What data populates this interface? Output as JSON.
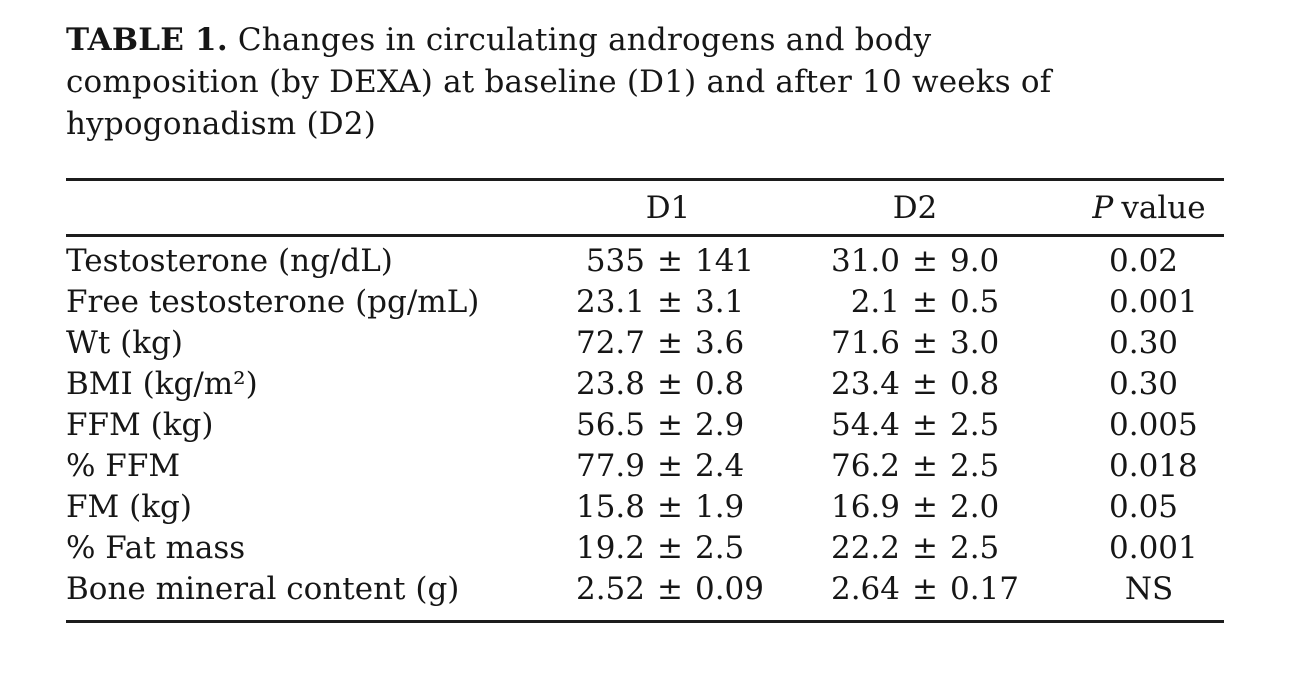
{
  "caption": {
    "label": "TABLE 1.",
    "lines": [
      "Changes in circulating androgens and body",
      "composition (by DEXA) at baseline (D1) and after 10 weeks of",
      "hypogonadism (D2)"
    ]
  },
  "table": {
    "plus_minus": "±",
    "columns": {
      "d1": "D1",
      "d2": "D2",
      "p_italic": "P",
      "p_rest": "value"
    },
    "rows": [
      {
        "label": "Testosterone (ng/dL)",
        "d1_mean": "535",
        "d1_sd": "141",
        "d2_mean": "31.0",
        "d2_sd": "9.0",
        "p": "0.02"
      },
      {
        "label": "Free testosterone (pg/mL)",
        "d1_mean": "23.1",
        "d1_sd": "3.1",
        "d2_mean": "2.1",
        "d2_sd": "0.5",
        "p": "0.001"
      },
      {
        "label": "Wt (kg)",
        "d1_mean": "72.7",
        "d1_sd": "3.6",
        "d2_mean": "71.6",
        "d2_sd": "3.0",
        "p": "0.30"
      },
      {
        "label": "BMI (kg/m²)",
        "d1_mean": "23.8",
        "d1_sd": "0.8",
        "d2_mean": "23.4",
        "d2_sd": "0.8",
        "p": "0.30"
      },
      {
        "label": "FFM (kg)",
        "d1_mean": "56.5",
        "d1_sd": "2.9",
        "d2_mean": "54.4",
        "d2_sd": "2.5",
        "p": "0.005"
      },
      {
        "label": "% FFM",
        "d1_mean": "77.9",
        "d1_sd": "2.4",
        "d2_mean": "76.2",
        "d2_sd": "2.5",
        "p": "0.018"
      },
      {
        "label": "FM (kg)",
        "d1_mean": "15.8",
        "d1_sd": "1.9",
        "d2_mean": "16.9",
        "d2_sd": "2.0",
        "p": "0.05"
      },
      {
        "label": "% Fat mass",
        "d1_mean": "19.2",
        "d1_sd": "2.5",
        "d2_mean": "22.2",
        "d2_sd": "2.5",
        "p": "0.001"
      },
      {
        "label": "Bone mineral content (g)",
        "d1_mean": "2.52",
        "d1_sd": "0.09",
        "d2_mean": "2.64",
        "d2_sd": "0.17",
        "p": "NS"
      }
    ]
  }
}
